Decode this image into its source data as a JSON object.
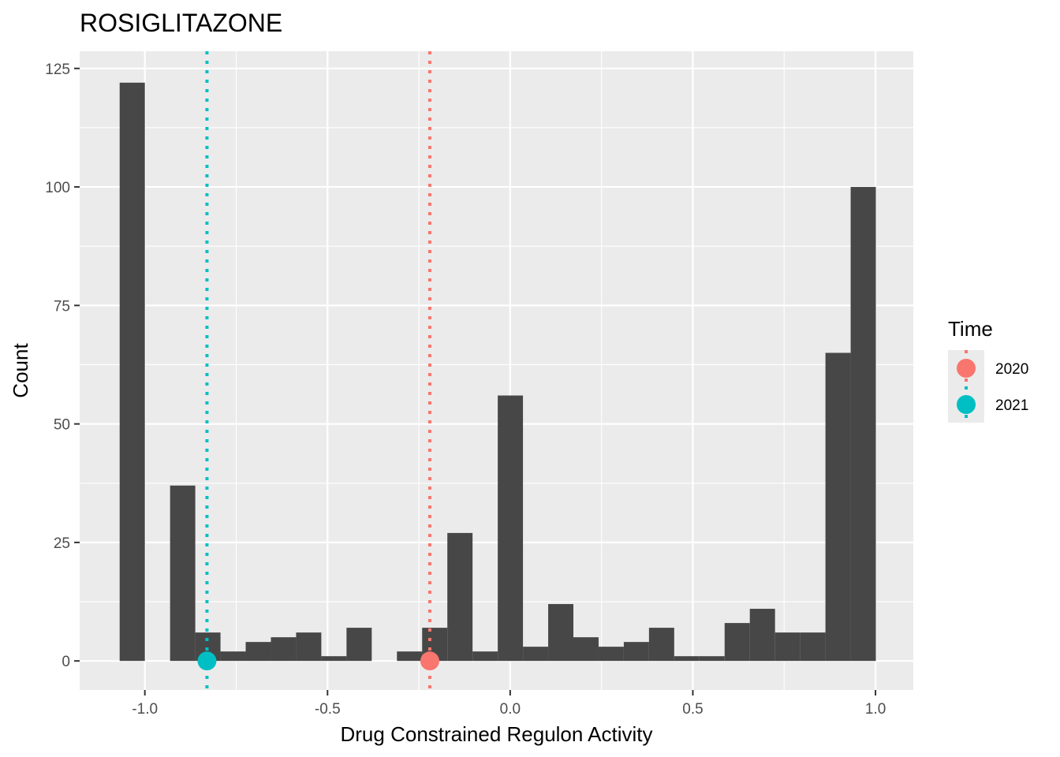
{
  "chart_data": {
    "type": "bar",
    "title": "ROSIGLITAZONE",
    "xlabel": "Drug Constrained Regulon Activity",
    "ylabel": "Count",
    "xlim": [
      -1.1785,
      1.1035
    ],
    "ylim": [
      -6.125,
      128.625
    ],
    "x_ticks": [
      -1.0,
      -0.5,
      0.0,
      0.5,
      1.0
    ],
    "x_tick_labels": [
      "-1.0",
      "-0.5",
      "0.0",
      "0.5",
      "1.0"
    ],
    "y_ticks": [
      0,
      25,
      50,
      75,
      100,
      125
    ],
    "y_tick_labels": [
      "0",
      "25",
      "50",
      "75",
      "100",
      "125"
    ],
    "bin_width": 0.069,
    "bins": [
      {
        "x0": -1.069,
        "x1": -1.0,
        "count": 122
      },
      {
        "x0": -1.0,
        "x1": -0.931,
        "count": 0
      },
      {
        "x0": -0.931,
        "x1": -0.862,
        "count": 37
      },
      {
        "x0": -0.862,
        "x1": -0.793,
        "count": 6
      },
      {
        "x0": -0.793,
        "x1": -0.724,
        "count": 2
      },
      {
        "x0": -0.724,
        "x1": -0.655,
        "count": 4
      },
      {
        "x0": -0.655,
        "x1": -0.586,
        "count": 5
      },
      {
        "x0": -0.586,
        "x1": -0.517,
        "count": 6
      },
      {
        "x0": -0.517,
        "x1": -0.448,
        "count": 1
      },
      {
        "x0": -0.448,
        "x1": -0.379,
        "count": 7
      },
      {
        "x0": -0.379,
        "x1": -0.31,
        "count": 0
      },
      {
        "x0": -0.31,
        "x1": -0.241,
        "count": 2
      },
      {
        "x0": -0.241,
        "x1": -0.172,
        "count": 7
      },
      {
        "x0": -0.172,
        "x1": -0.103,
        "count": 27
      },
      {
        "x0": -0.103,
        "x1": -0.034,
        "count": 2
      },
      {
        "x0": -0.034,
        "x1": 0.035,
        "count": 56
      },
      {
        "x0": 0.035,
        "x1": 0.104,
        "count": 3
      },
      {
        "x0": 0.104,
        "x1": 0.173,
        "count": 12
      },
      {
        "x0": 0.173,
        "x1": 0.242,
        "count": 5
      },
      {
        "x0": 0.242,
        "x1": 0.311,
        "count": 3
      },
      {
        "x0": 0.311,
        "x1": 0.38,
        "count": 4
      },
      {
        "x0": 0.38,
        "x1": 0.449,
        "count": 7
      },
      {
        "x0": 0.449,
        "x1": 0.518,
        "count": 1
      },
      {
        "x0": 0.518,
        "x1": 0.587,
        "count": 1
      },
      {
        "x0": 0.587,
        "x1": 0.656,
        "count": 8
      },
      {
        "x0": 0.656,
        "x1": 0.725,
        "count": 11
      },
      {
        "x0": 0.725,
        "x1": 0.794,
        "count": 6
      },
      {
        "x0": 0.794,
        "x1": 0.863,
        "count": 6
      },
      {
        "x0": 0.863,
        "x1": 0.932,
        "count": 65
      },
      {
        "x0": 0.932,
        "x1": 1.001,
        "count": 100
      }
    ],
    "series": [
      {
        "name": "2020",
        "x": -0.22,
        "y": 0,
        "color": "#F8766D"
      },
      {
        "name": "2021",
        "x": -0.83,
        "y": 0,
        "color": "#00BFC4"
      }
    ],
    "legend": {
      "title": "Time",
      "placement": "right"
    },
    "grid": true,
    "colors": {
      "bar": "#474747",
      "panel": "#EBEBEB",
      "grid": "#FFFFFF",
      "tick": "#333333",
      "text": "#4D4D4D"
    }
  }
}
